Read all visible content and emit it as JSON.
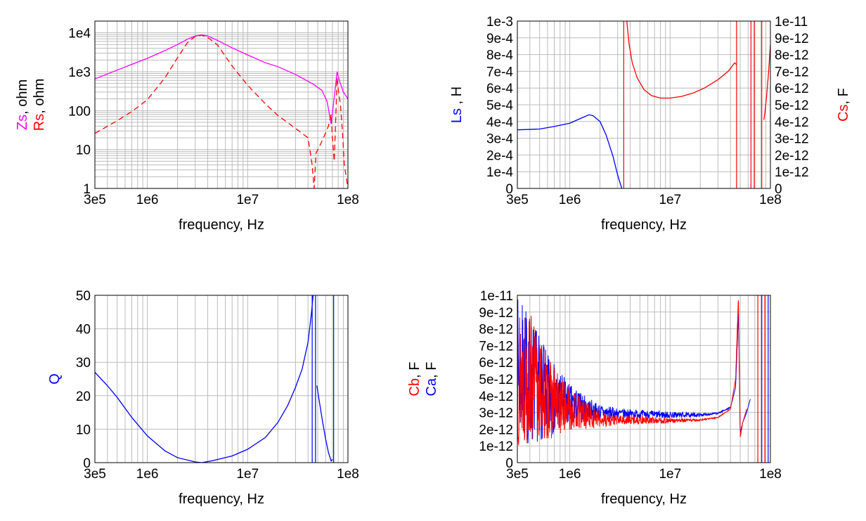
{
  "colors": {
    "magenta": "#ff00ff",
    "red": "#ff0000",
    "blue": "#0000ff",
    "grid": "#bcbcbc"
  },
  "chart_data": [
    {
      "id": "panel-impedance",
      "type": "line",
      "xscale": "log",
      "yscale": "log",
      "xlim": [
        300000,
        100000000
      ],
      "ylim": [
        1,
        20000
      ],
      "xticks": [
        300000,
        1000000,
        10000000,
        100000000
      ],
      "xtick_labels": [
        "3e5",
        "1e6",
        "1e7",
        "1e8"
      ],
      "yticks": [
        1,
        10,
        100,
        1000,
        10000
      ],
      "ytick_labels": [
        "1",
        "10",
        "100",
        "1e3",
        "1e4"
      ],
      "xlabel": "frequency, Hz",
      "ylabel_parts": [
        {
          "text": "Zs",
          "color": "#ff00ff",
          "line": 0
        },
        {
          "text": ", ohm",
          "color": "#000000",
          "line": 0
        },
        {
          "text": "Rs",
          "color": "#ff0000",
          "line": 1
        },
        {
          "text": ", ohm",
          "color": "#000000",
          "line": 1
        }
      ],
      "grid": true,
      "series": [
        {
          "color": "#ff00ff",
          "dash": "",
          "x": [
            300000,
            500000,
            700000,
            1000000,
            1500000,
            2000000,
            2500000,
            3000000,
            3500000,
            4000000,
            5000000,
            7000000,
            10000000,
            15000000,
            20000000,
            30000000,
            45000000,
            55000000,
            62000000,
            68000000,
            72000000,
            78000000,
            82000000,
            90000000,
            100000000
          ],
          "y": [
            650,
            1100,
            1550,
            2200,
            3500,
            5000,
            6800,
            8300,
            8800,
            8300,
            6400,
            4100,
            2700,
            1700,
            1350,
            850,
            480,
            330,
            170,
            45,
            160,
            1000,
            600,
            300,
            200
          ]
        },
        {
          "color": "#ff0000",
          "dash": "8,5",
          "x": [
            300000,
            500000,
            700000,
            1000000,
            1500000,
            2000000,
            2500000,
            3000000,
            3500000,
            4000000,
            5000000,
            7000000,
            10000000,
            15000000,
            20000000,
            30000000,
            40000000,
            44000000,
            46000000,
            48000000,
            52000000,
            58000000,
            64000000,
            68000000,
            70000000,
            73000000,
            76000000,
            78000000,
            80000000,
            84000000,
            88000000,
            92000000,
            96000000,
            100000000
          ],
          "y": [
            26,
            55,
            95,
            190,
            700,
            2300,
            5500,
            8100,
            8700,
            7600,
            4900,
            1400,
            450,
            150,
            75,
            35,
            20,
            4,
            1,
            8,
            12,
            22,
            40,
            80,
            20,
            5,
            100,
            700,
            350,
            150,
            30,
            4,
            2,
            1
          ]
        }
      ]
    },
    {
      "id": "panel-inductance",
      "type": "line",
      "xscale": "log",
      "xlim": [
        300000,
        100000000
      ],
      "ylim": [
        0,
        0.001
      ],
      "y2lim": [
        0,
        1e-11
      ],
      "xticks": [
        300000,
        1000000,
        10000000,
        100000000
      ],
      "xtick_labels": [
        "3e5",
        "1e6",
        "1e7",
        "1e8"
      ],
      "ytick_labels": [
        "0",
        "1e-4",
        "2e-4",
        "3e-4",
        "4e-4",
        "5e-4",
        "6e-4",
        "7e-4",
        "8e-4",
        "9e-4",
        "1e-3"
      ],
      "y2tick_labels": [
        "0",
        "1e-12",
        "2e-12",
        "3e-12",
        "4e-12",
        "5e-12",
        "6e-12",
        "7e-12",
        "8e-12",
        "9e-12",
        "1e-11"
      ],
      "xlabel": "frequency, Hz",
      "ylabel_parts": [
        {
          "text": "Ls",
          "color": "#0000ff",
          "line": 0
        },
        {
          "text": " , H",
          "color": "#000000",
          "line": 0
        }
      ],
      "y2label_parts": [
        {
          "text": "Cs",
          "color": "#ff0000",
          "line": 0
        },
        {
          "text": ", F",
          "color": "#000000",
          "line": 0
        }
      ],
      "grid": true,
      "vlines": [
        {
          "x": 3450000,
          "color": "#ff0000"
        },
        {
          "x": 46000000,
          "color": "#ff0000"
        },
        {
          "x": 64000000,
          "color": "#ff0000"
        },
        {
          "x": 69000000,
          "color": "#ff0000"
        },
        {
          "x": 82000000,
          "color": "#ff0000"
        }
      ],
      "series": [
        {
          "color": "#0000ff",
          "axis": "y",
          "x": [
            300000,
            500000,
            700000,
            1000000,
            1300000,
            1550000,
            1700000,
            2000000,
            2300000,
            2700000,
            3000000,
            3300000
          ],
          "y": [
            0.00035,
            0.000355,
            0.00037,
            0.00039,
            0.00042,
            0.00044,
            0.000435,
            0.0004,
            0.00032,
            0.00019,
            8e-05,
            0
          ]
        },
        {
          "color": "#ff0000",
          "axis": "y2",
          "x": [
            3700000,
            3900000,
            4200000,
            4700000,
            5500000,
            6500000,
            8000000,
            10000000,
            13000000,
            17000000,
            22000000,
            30000000,
            38000000,
            44000000,
            46000000
          ],
          "y": [
            1e-11,
            8.6e-12,
            7.5e-12,
            6.6e-12,
            5.9e-12,
            5.55e-12,
            5.4e-12,
            5.4e-12,
            5.5e-12,
            5.7e-12,
            6e-12,
            6.5e-12,
            7e-12,
            7.5e-12,
            7.4e-12
          ]
        },
        {
          "color": "#ff0000",
          "axis": "y2",
          "x": [
            86000000,
            88000000,
            92000000,
            96000000,
            100000000
          ],
          "y": [
            4.1e-12,
            4.5e-12,
            5.6e-12,
            7e-12,
            8.6e-12
          ]
        }
      ]
    },
    {
      "id": "panel-quality",
      "type": "line",
      "xscale": "log",
      "xlim": [
        300000,
        100000000
      ],
      "ylim": [
        0,
        50
      ],
      "xticks": [
        300000,
        1000000,
        10000000,
        100000000
      ],
      "xtick_labels": [
        "3e5",
        "1e6",
        "1e7",
        "1e8"
      ],
      "yticks": [
        0,
        10,
        20,
        30,
        40,
        50
      ],
      "ytick_labels": [
        "0",
        "10",
        "20",
        "30",
        "40",
        "50"
      ],
      "xlabel": "frequency, Hz",
      "ylabel_parts": [
        {
          "text": "Q",
          "color": "#0000ff",
          "line": 0
        }
      ],
      "grid": true,
      "vlines": [
        {
          "x": 44000000,
          "color": "#0000ff"
        },
        {
          "x": 47500000,
          "color": "#0000ff"
        },
        {
          "x": 72000000,
          "color": "#0000ff"
        }
      ],
      "series": [
        {
          "color": "#0000ff",
          "x": [
            300000,
            400000,
            500000,
            700000,
            1000000,
            1500000,
            2000000,
            3000000,
            3500000,
            4500000,
            7000000,
            10000000,
            15000000,
            20000000,
            25000000,
            30000000,
            35000000,
            40000000,
            43000000,
            45000000
          ],
          "y": [
            27,
            23,
            19.5,
            13.5,
            8,
            3.5,
            1.5,
            0.2,
            0,
            0.6,
            2,
            4,
            7.5,
            12,
            17,
            22.5,
            28,
            36,
            44,
            50
          ]
        },
        {
          "color": "#0000ff",
          "x": [
            49000000,
            52000000,
            56000000,
            60000000,
            64000000,
            68000000,
            70000000
          ],
          "y": [
            23,
            18,
            12,
            7,
            3,
            0.5,
            1
          ]
        }
      ]
    },
    {
      "id": "panel-capacitance",
      "type": "line",
      "xscale": "log",
      "xlim": [
        300000,
        100000000
      ],
      "ylim": [
        0,
        1e-11
      ],
      "xticks": [
        300000,
        1000000,
        10000000,
        100000000
      ],
      "xtick_labels": [
        "3e5",
        "1e6",
        "1e7",
        "1e8"
      ],
      "ytick_labels": [
        "0",
        "1e-12",
        "2e-12",
        "3e-12",
        "4e-12",
        "5e-12",
        "6e-12",
        "7e-12",
        "8e-12",
        "9e-12",
        "1e-11"
      ],
      "xlabel": "frequency, Hz",
      "ylabel_parts": [
        {
          "text": "Cb",
          "color": "#ff0000",
          "line": 0
        },
        {
          "text": ", F",
          "color": "#000000",
          "line": 0
        },
        {
          "text": "Ca",
          "color": "#0000ff",
          "line": 1
        },
        {
          "text": ", F",
          "color": "#000000",
          "line": 1
        }
      ],
      "grid": true,
      "vlines": [
        {
          "x": 75000000,
          "color": "#ff0000"
        },
        {
          "x": 82000000,
          "color": "#0000ff"
        },
        {
          "x": 88000000,
          "color": "#ff0000"
        },
        {
          "x": 95000000,
          "color": "#0000ff"
        }
      ],
      "series": [
        {
          "color": "#0000ff",
          "noise": true,
          "seed": 7,
          "x": [
            300000,
            400000,
            600000,
            1000000,
            1500000,
            2000000,
            3000000,
            5000000,
            10000000,
            20000000,
            30000000,
            40000000,
            45000000,
            48000000,
            50000000,
            53000000,
            58000000,
            63000000
          ],
          "y": [
            5.5e-12,
            5e-12,
            4e-12,
            3.5e-12,
            3.2e-12,
            3e-12,
            2.95e-12,
            2.9e-12,
            2.85e-12,
            2.85e-12,
            2.95e-12,
            3.3e-12,
            4.5e-12,
            9e-12,
            1.8e-12,
            2.4e-12,
            3e-12,
            3.8e-12
          ],
          "amp": [
            4.5e-12,
            4e-12,
            2.5e-12,
            1.2e-12,
            7e-13,
            5e-13,
            3e-13,
            2.5e-13,
            2e-13,
            1e-13,
            5e-14,
            3e-14,
            0,
            0,
            0,
            0,
            0,
            0
          ]
        },
        {
          "color": "#ff0000",
          "noise": true,
          "seed": 13,
          "x": [
            300000,
            400000,
            600000,
            1000000,
            1500000,
            2000000,
            3000000,
            5000000,
            10000000,
            20000000,
            30000000,
            40000000,
            45000000,
            48000000,
            50000000,
            53000000,
            58000000
          ],
          "y": [
            5.5e-12,
            5e-12,
            3.8e-12,
            3.2e-12,
            2.8e-12,
            2.6e-12,
            2.55e-12,
            2.55e-12,
            2.5e-12,
            2.55e-12,
            2.7e-12,
            3.2e-12,
            5e-12,
            1e-11,
            1.5e-12,
            2.4e-12,
            3.2e-12
          ],
          "amp": [
            4.5e-12,
            4e-12,
            2.5e-12,
            1.3e-12,
            8e-13,
            5e-13,
            3e-13,
            2.5e-13,
            1.5e-13,
            5e-14,
            3e-14,
            2e-14,
            0,
            0,
            0,
            0,
            0
          ]
        }
      ]
    }
  ]
}
